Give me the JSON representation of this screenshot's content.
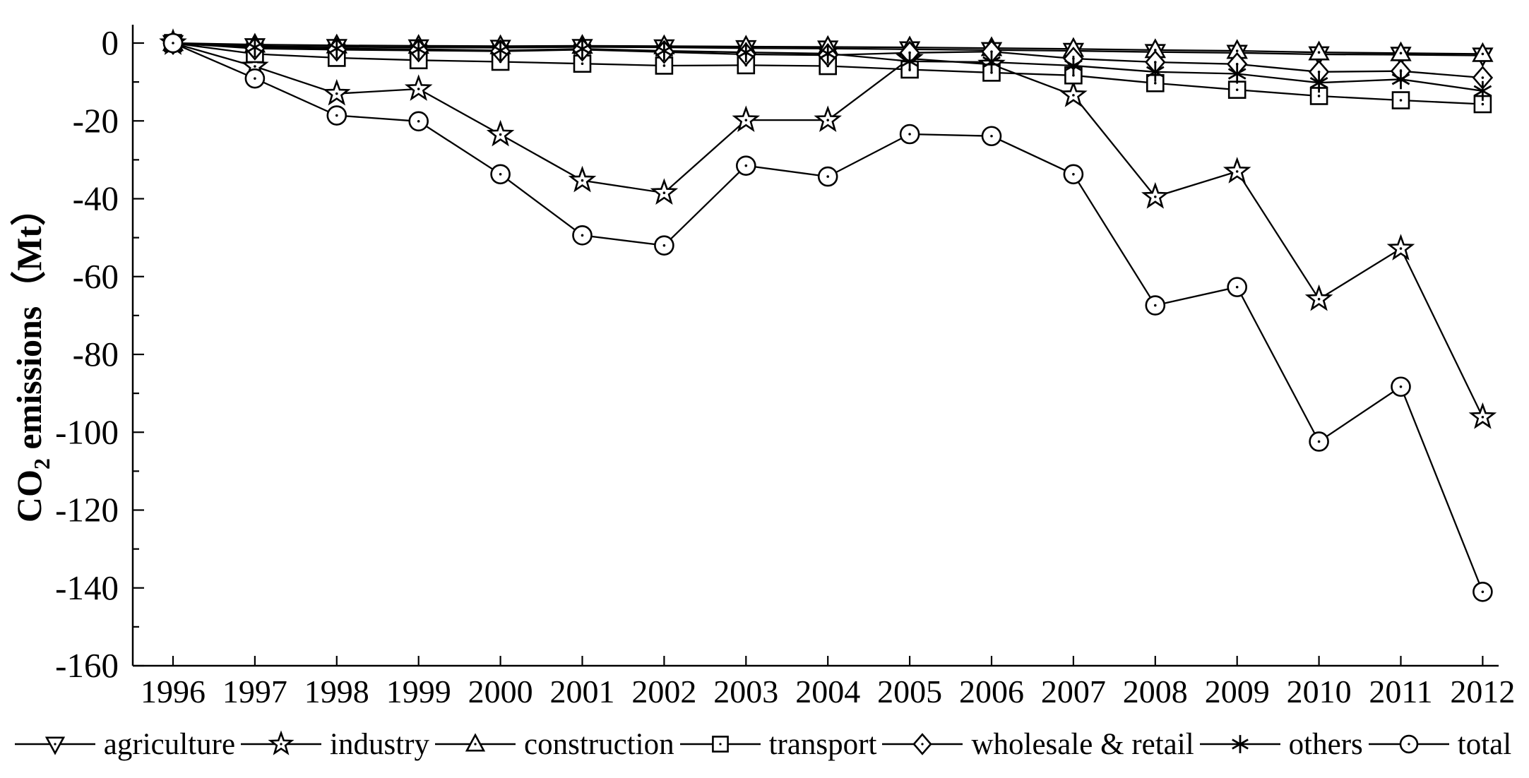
{
  "figure": {
    "background_color": "#ffffff",
    "line_color": "#000000",
    "axis_color": "#000000",
    "y_axis_title": {
      "pre": "CO",
      "sub": "2",
      "post": " emissions",
      "unit": "（Mt）"
    }
  },
  "chart_data": {
    "type": "line",
    "title": "",
    "xlabel": "",
    "ylabel": "CO2 emissions (Mt)",
    "x": [
      1996,
      1997,
      1998,
      1999,
      2000,
      2001,
      2002,
      2003,
      2004,
      2005,
      2006,
      2007,
      2008,
      2009,
      2010,
      2011,
      2012
    ],
    "ylim": [
      -160,
      0
    ],
    "y_major_tick": 20,
    "y_minor_tick": 10,
    "grid": false,
    "legend_position": "bottom",
    "series": [
      {
        "name": "agriculture",
        "marker": "triangle-down",
        "values": [
          0,
          -0.8,
          -1.0,
          -1.1,
          -1.2,
          -1.0,
          -1.1,
          -1.3,
          -1.4,
          -1.6,
          -1.8,
          -2.0,
          -2.3,
          -2.5,
          -2.9,
          -3.0,
          -3.2
        ]
      },
      {
        "name": "industry",
        "marker": "star",
        "values": [
          0,
          -6.0,
          -13.0,
          -11.8,
          -23.5,
          -35.3,
          -38.5,
          -19.8,
          -19.8,
          -4.0,
          -5.5,
          -13.4,
          -39.5,
          -33.0,
          -65.8,
          -52.8,
          -96.1
        ]
      },
      {
        "name": "construction",
        "marker": "triangle-up",
        "values": [
          0,
          -0.4,
          -0.6,
          -0.7,
          -0.8,
          -0.7,
          -0.8,
          -0.9,
          -1.0,
          -1.1,
          -1.3,
          -1.5,
          -1.8,
          -2.0,
          -2.4,
          -2.6,
          -2.8
        ]
      },
      {
        "name": "transport",
        "marker": "square",
        "values": [
          0,
          -2.8,
          -3.8,
          -4.4,
          -4.8,
          -5.3,
          -5.8,
          -5.7,
          -5.9,
          -6.8,
          -7.6,
          -8.3,
          -10.3,
          -12.0,
          -13.6,
          -14.7,
          -15.7
        ]
      },
      {
        "name": "wholesale & retail",
        "marker": "diamond",
        "values": [
          0,
          -1.4,
          -1.7,
          -1.9,
          -2.1,
          -1.7,
          -2.3,
          -2.9,
          -3.1,
          -2.5,
          -2.2,
          -4.0,
          -4.9,
          -5.4,
          -7.4,
          -7.2,
          -8.9
        ]
      },
      {
        "name": "others",
        "marker": "asterisk",
        "values": [
          0,
          -1.1,
          -1.4,
          -1.6,
          -1.9,
          -1.5,
          -2.0,
          -2.4,
          -2.7,
          -4.7,
          -4.9,
          -5.8,
          -7.4,
          -7.9,
          -10.2,
          -9.3,
          -12.3
        ]
      },
      {
        "name": "total",
        "marker": "circle",
        "values": [
          0,
          -9.1,
          -18.6,
          -20.1,
          -33.7,
          -49.4,
          -52.0,
          -31.5,
          -34.3,
          -23.4,
          -23.9,
          -33.7,
          -67.4,
          -62.7,
          -102.4,
          -88.3,
          -141.0
        ]
      }
    ]
  }
}
